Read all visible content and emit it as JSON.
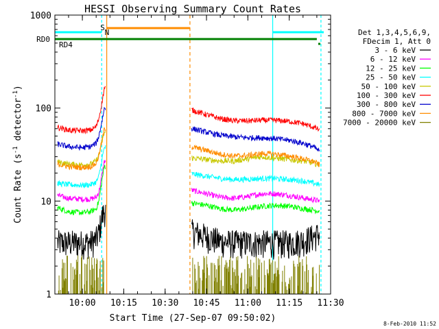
{
  "chart_data": {
    "type": "line",
    "title": "HESSI Observing Summary Count Rates",
    "xlabel": "Start Time (27-Sep-07 09:50:02)",
    "ylabel": "Count Rate (s",
    "ylabel_sup1": "-1",
    "ylabel_mid": " detector",
    "ylabel_sup2": "-1",
    "ylabel_end": ")",
    "y_scale": "log",
    "ylim": [
      1,
      1000
    ],
    "xlim": [
      "09:50:02",
      "11:30:00"
    ],
    "x_ticks": [
      "10:00",
      "10:15",
      "10:30",
      "10:45",
      "11:00",
      "11:15",
      "11:30"
    ],
    "y_ticks": [
      "1",
      "10",
      "100",
      "1000"
    ],
    "grid": false,
    "legend_position": "right",
    "legend_header": [
      "Det 1,3,4,5,6,9,",
      "FDecim 1, Att 0"
    ],
    "data_gaps": [
      [
        "10:08:30",
        "10:39:30"
      ]
    ],
    "series": [
      {
        "name": "3 - 6 keV",
        "color": "#000000",
        "points": [
          [
            "09:51",
            "3.6"
          ],
          [
            "09:55",
            "3.6"
          ],
          [
            "10:00",
            "3.6"
          ],
          [
            "10:03",
            "3.6"
          ],
          [
            "10:05",
            "3.9"
          ],
          [
            "10:06",
            "4.6"
          ],
          [
            "10:07",
            "6.5"
          ],
          [
            "10:08",
            "8.0"
          ],
          [
            "10:40",
            "4.7"
          ],
          [
            "10:45",
            "4.2"
          ],
          [
            "10:50",
            "3.7"
          ],
          [
            "10:55",
            "3.6"
          ],
          [
            "11:00",
            "3.6"
          ],
          [
            "11:05",
            "3.6"
          ],
          [
            "11:10",
            "3.6"
          ],
          [
            "11:15",
            "3.6"
          ],
          [
            "11:20",
            "3.8"
          ],
          [
            "11:24",
            "4.2"
          ],
          [
            "11:26",
            "4.5"
          ]
        ]
      },
      {
        "name": "6 - 12 keV",
        "color": "#ff00ff",
        "points": [
          [
            "09:51",
            "11.5"
          ],
          [
            "09:55",
            "10.7"
          ],
          [
            "10:00",
            "10.5"
          ],
          [
            "10:03",
            "10.5"
          ],
          [
            "10:05",
            "11.0"
          ],
          [
            "10:06",
            "12.5"
          ],
          [
            "10:07",
            "18.0"
          ],
          [
            "10:08",
            "27.0"
          ],
          [
            "10:40",
            "13.0"
          ],
          [
            "10:45",
            "12.0"
          ],
          [
            "10:50",
            "11.0"
          ],
          [
            "10:55",
            "10.7"
          ],
          [
            "11:00",
            "11.2"
          ],
          [
            "11:05",
            "12.0"
          ],
          [
            "11:10",
            "12.0"
          ],
          [
            "11:15",
            "11.5"
          ],
          [
            "11:20",
            "10.8"
          ],
          [
            "11:24",
            "10.3"
          ],
          [
            "11:26",
            "10.0"
          ]
        ]
      },
      {
        "name": "12 - 25 keV",
        "color": "#00ff00",
        "points": [
          [
            "09:51",
            "8.5"
          ],
          [
            "09:55",
            "7.7"
          ],
          [
            "10:00",
            "7.5"
          ],
          [
            "10:03",
            "7.7"
          ],
          [
            "10:05",
            "8.3"
          ],
          [
            "10:06",
            "10.0"
          ],
          [
            "10:07",
            "16.0"
          ],
          [
            "10:08",
            "24.0"
          ],
          [
            "10:40",
            "9.5"
          ],
          [
            "10:45",
            "9.0"
          ],
          [
            "10:50",
            "8.3"
          ],
          [
            "10:55",
            "8.0"
          ],
          [
            "11:00",
            "8.3"
          ],
          [
            "11:05",
            "8.8"
          ],
          [
            "11:10",
            "9.0"
          ],
          [
            "11:15",
            "8.8"
          ],
          [
            "11:20",
            "8.3"
          ],
          [
            "11:24",
            "8.0"
          ],
          [
            "11:26",
            "7.8"
          ]
        ]
      },
      {
        "name": "25 - 50 keV",
        "color": "#00ffff",
        "points": [
          [
            "09:51",
            "15.5"
          ],
          [
            "09:55",
            "15.0"
          ],
          [
            "10:00",
            "14.8"
          ],
          [
            "10:03",
            "15.0"
          ],
          [
            "10:05",
            "16.0"
          ],
          [
            "10:06",
            "18.5"
          ],
          [
            "10:07",
            "27.0"
          ],
          [
            "10:08",
            "38.0"
          ],
          [
            "10:40",
            "19.5"
          ],
          [
            "10:45",
            "18.5"
          ],
          [
            "10:50",
            "17.5"
          ],
          [
            "10:55",
            "17.0"
          ],
          [
            "11:00",
            "17.2"
          ],
          [
            "11:05",
            "17.5"
          ],
          [
            "11:10",
            "17.5"
          ],
          [
            "11:15",
            "17.0"
          ],
          [
            "11:20",
            "16.5"
          ],
          [
            "11:24",
            "15.5"
          ],
          [
            "11:26",
            "15.0"
          ]
        ]
      },
      {
        "name": "50 - 100 keV",
        "color": "#c8c800",
        "points": [
          [
            "09:51",
            "26.5"
          ],
          [
            "09:55",
            "25.0"
          ],
          [
            "10:00",
            "24.5"
          ],
          [
            "10:03",
            "25.0"
          ],
          [
            "10:05",
            "27.0"
          ],
          [
            "10:06",
            "31.0"
          ],
          [
            "10:07",
            "42.0"
          ],
          [
            "10:08",
            "55.0"
          ],
          [
            "10:40",
            "29.0"
          ],
          [
            "10:45",
            "28.0"
          ],
          [
            "10:50",
            "27.0"
          ],
          [
            "10:55",
            "27.0"
          ],
          [
            "11:00",
            "28.5"
          ],
          [
            "11:05",
            "30.0"
          ],
          [
            "11:10",
            "29.0"
          ],
          [
            "11:15",
            "28.0"
          ],
          [
            "11:20",
            "27.0"
          ],
          [
            "11:24",
            "25.5"
          ],
          [
            "11:26",
            "24.5"
          ]
        ]
      },
      {
        "name": "100 - 300 keV",
        "color": "#ff0000",
        "points": [
          [
            "09:51",
            "62"
          ],
          [
            "09:55",
            "58"
          ],
          [
            "10:00",
            "57"
          ],
          [
            "10:03",
            "58"
          ],
          [
            "10:05",
            "63"
          ],
          [
            "10:06",
            "78"
          ],
          [
            "10:07",
            "110"
          ],
          [
            "10:08",
            "165"
          ],
          [
            "10:40",
            "95"
          ],
          [
            "10:45",
            "85"
          ],
          [
            "10:50",
            "77"
          ],
          [
            "10:55",
            "73"
          ],
          [
            "11:00",
            "73"
          ],
          [
            "11:05",
            "74"
          ],
          [
            "11:10",
            "74"
          ],
          [
            "11:15",
            "72"
          ],
          [
            "11:20",
            "68"
          ],
          [
            "11:24",
            "62"
          ],
          [
            "11:26",
            "58"
          ]
        ]
      },
      {
        "name": "300 - 800 keV",
        "color": "#0000cc",
        "points": [
          [
            "09:51",
            "41"
          ],
          [
            "09:55",
            "38.5"
          ],
          [
            "10:00",
            "37.5"
          ],
          [
            "10:03",
            "38.5"
          ],
          [
            "10:05",
            "42"
          ],
          [
            "10:06",
            "50"
          ],
          [
            "10:07",
            "70"
          ],
          [
            "10:08",
            "100"
          ],
          [
            "10:40",
            "60"
          ],
          [
            "10:45",
            "55"
          ],
          [
            "10:50",
            "51"
          ],
          [
            "10:55",
            "49"
          ],
          [
            "11:00",
            "48"
          ],
          [
            "11:05",
            "48"
          ],
          [
            "11:10",
            "47"
          ],
          [
            "11:15",
            "45"
          ],
          [
            "11:20",
            "42"
          ],
          [
            "11:24",
            "38"
          ],
          [
            "11:26",
            "34"
          ]
        ]
      },
      {
        "name": "800 - 7000 keV",
        "color": "#ff8c00",
        "points": [
          [
            "09:51",
            "25"
          ],
          [
            "09:55",
            "23.5"
          ],
          [
            "10:00",
            "23"
          ],
          [
            "10:03",
            "23.5"
          ],
          [
            "10:05",
            "25.5"
          ],
          [
            "10:06",
            "31"
          ],
          [
            "10:07",
            "43"
          ],
          [
            "10:08",
            "60"
          ],
          [
            "10:40",
            "38"
          ],
          [
            "10:45",
            "35"
          ],
          [
            "10:50",
            "32"
          ],
          [
            "10:55",
            "30.5"
          ],
          [
            "11:00",
            "31"
          ],
          [
            "11:05",
            "32.5"
          ],
          [
            "11:10",
            "32"
          ],
          [
            "11:15",
            "30.5"
          ],
          [
            "11:20",
            "28.5"
          ],
          [
            "11:24",
            "26.5"
          ],
          [
            "11:26",
            "24.5"
          ]
        ]
      },
      {
        "name": "7000 - 20000 keV",
        "color": "#808000",
        "points": []
      }
    ],
    "annotations": {
      "rd0_label": "RD0",
      "rd4_label": "RD4",
      "s_marker": "S",
      "n_marker": "N"
    }
  },
  "footer": {
    "datestamp": "8-Feb-2010 11:52"
  },
  "colors": {
    "axes": "#000000",
    "saa_line": "#00ffff",
    "night_line": "#ff8c00",
    "rd_line": "#008000",
    "background": "#ffffff"
  }
}
